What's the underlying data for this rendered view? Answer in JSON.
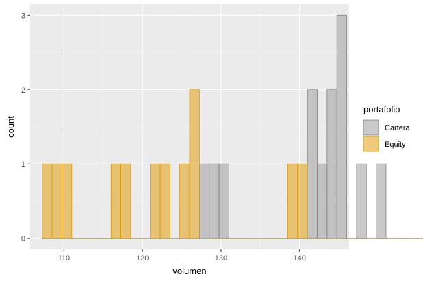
{
  "chart_data": {
    "type": "bar",
    "subtype": "overlaid-histogram",
    "title": "",
    "xlabel": "volumen",
    "ylabel": "count",
    "xlim": [
      105.7,
      146.3
    ],
    "ylim": [
      -0.15,
      3.15
    ],
    "x_ticks": [
      110,
      120,
      130,
      140
    ],
    "y_ticks": [
      0,
      1,
      2,
      3
    ],
    "bin_width": 1.25,
    "grid": true,
    "legend": {
      "title": "portafolio",
      "position": "right"
    },
    "series": [
      {
        "name": "Cartera",
        "fill": "#a6a6a6",
        "stroke": "#808080",
        "bins_start": 107.25,
        "counts": [
          0,
          0,
          0,
          0,
          0,
          0,
          0,
          0,
          0,
          0,
          0,
          0,
          0,
          0,
          0,
          0,
          1,
          1,
          1,
          0,
          0,
          0,
          0,
          0,
          0,
          0,
          0,
          2,
          1,
          2,
          3,
          0,
          1,
          0,
          1,
          0,
          0,
          0,
          0,
          0,
          0,
          0,
          0,
          0,
          0,
          0,
          0,
          0,
          0,
          0
        ]
      },
      {
        "name": "Equity",
        "fill": "#e6a623",
        "stroke": "#d99a00",
        "bins_start": 107.25,
        "counts": [
          1,
          1,
          1,
          0,
          0,
          0,
          0,
          1,
          1,
          0,
          0,
          1,
          1,
          0,
          1,
          2,
          0,
          0,
          0,
          0,
          0,
          0,
          0,
          0,
          0,
          1,
          1,
          0,
          0,
          0,
          0,
          0,
          0,
          0,
          0,
          0,
          0,
          0,
          0,
          0,
          0,
          0,
          0,
          0,
          0,
          0,
          0,
          0,
          0,
          0
        ]
      }
    ]
  }
}
